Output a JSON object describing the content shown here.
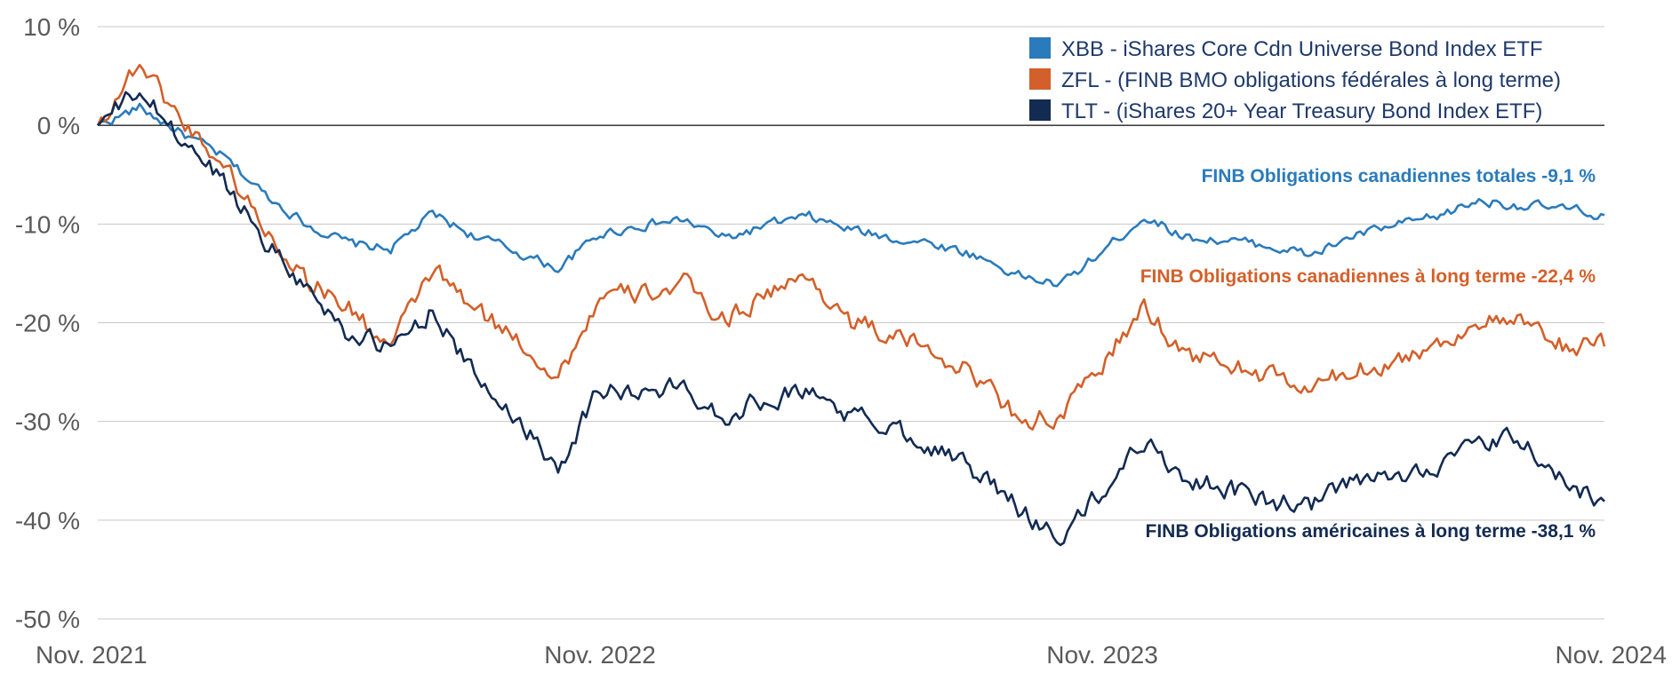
{
  "chart_data": {
    "type": "line",
    "title": "",
    "xlabel": "",
    "ylabel": "",
    "ylim": [
      -50,
      10
    ],
    "yticks": [
      10,
      0,
      -10,
      -20,
      -30,
      -40,
      -50
    ],
    "ytick_labels": [
      "10 %",
      "0 %",
      "-10 %",
      "-20 %",
      "-30 %",
      "-40 %",
      "-50 %"
    ],
    "x_range": [
      "2021-11",
      "2024-11"
    ],
    "xtick_labels": [
      "Nov. 2021",
      "Nov. 2022",
      "Nov. 2023",
      "Nov. 2024"
    ],
    "grid": true,
    "legend_position": "top-right",
    "x_dates": [
      "2021-11",
      "2021-12",
      "2022-01",
      "2022-02",
      "2022-03",
      "2022-04",
      "2022-05",
      "2022-06",
      "2022-07",
      "2022-08",
      "2022-09",
      "2022-10",
      "2022-11",
      "2022-12",
      "2023-01",
      "2023-02",
      "2023-03",
      "2023-04",
      "2023-05",
      "2023-06",
      "2023-07",
      "2023-08",
      "2023-09",
      "2023-10",
      "2023-11",
      "2023-12",
      "2024-01",
      "2024-02",
      "2024-03",
      "2024-04",
      "2024-05",
      "2024-06",
      "2024-07",
      "2024-08",
      "2024-09",
      "2024-10",
      "2024-11"
    ],
    "series": [
      {
        "name": "XBB - iShares Core Cdn Universe Bond Index ETF",
        "color": "#2b7bba",
        "values": [
          0,
          1.8,
          -0.8,
          -3.2,
          -7,
          -10,
          -12,
          -12.5,
          -9,
          -11.2,
          -12.8,
          -14.5,
          -11,
          -10.1,
          -9.6,
          -11.5,
          -10.1,
          -9.3,
          -10.6,
          -11.4,
          -12,
          -13.2,
          -15.2,
          -16.2,
          -12.8,
          -9.2,
          -11.3,
          -11.7,
          -12.2,
          -13.2,
          -11.2,
          -10.2,
          -9.3,
          -7.6,
          -8.1,
          -8.5,
          -9.1
        ],
        "end_label": "FINB Obligations canadiennes totales -9,1 %"
      },
      {
        "name": "ZFL - (FINB BMO obligations fédérales à long terme)",
        "color": "#d3602a",
        "values": [
          0,
          6.5,
          0.5,
          -3.8,
          -10.5,
          -15.5,
          -18.5,
          -22.5,
          -14.5,
          -18.8,
          -21.5,
          -25.5,
          -17.5,
          -17.1,
          -16.2,
          -19.8,
          -16.8,
          -15.5,
          -19.8,
          -21.5,
          -22.8,
          -25.5,
          -29.5,
          -29.8,
          -24.2,
          -18.5,
          -23.2,
          -24.2,
          -25.5,
          -26.8,
          -24.8,
          -23.8,
          -22.3,
          -19.8,
          -20.2,
          -22.3,
          -22.4
        ],
        "end_label": "FINB Obligations canadiennes à long terme -22,4 %"
      },
      {
        "name": "TLT - (iShares 20+ Year Treasury Bond Index ETF)",
        "color": "#132b52",
        "values": [
          0,
          3.5,
          -1.5,
          -5.5,
          -11.5,
          -16.5,
          -21,
          -22.8,
          -18.5,
          -25.5,
          -29.5,
          -34.5,
          -26.5,
          -27.2,
          -26.5,
          -29.5,
          -27.5,
          -26.8,
          -29.5,
          -30.5,
          -32.5,
          -35.2,
          -38.8,
          -41.8,
          -37.2,
          -31.8,
          -35.8,
          -36.8,
          -38.2,
          -38.5,
          -36.2,
          -35.8,
          -34.2,
          -32.5,
          -31.8,
          -36.2,
          -38.1
        ],
        "end_label": "FINB Obligations américaines à long terme -38,1 %"
      }
    ]
  }
}
